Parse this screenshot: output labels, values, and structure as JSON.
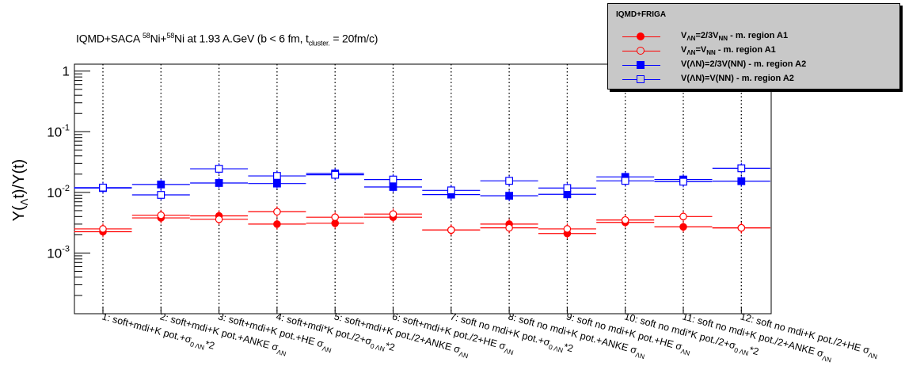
{
  "title_parts": {
    "prefix": "IQMD+SACA ",
    "iso1_mass": "58",
    "iso1_sym": "Ni+",
    "iso2_mass": "58",
    "iso2_sym": "Ni at 1.93 A.GeV (b < 6 fm, t",
    "t_sub": "cluster.",
    "suffix": " = 20fm/c)"
  },
  "legend": {
    "header": "IQMD+FRIGA",
    "entries": [
      {
        "name": "V_ΛN=2/3V_NN - m. region A1",
        "main": "V",
        "sub": "ΛN",
        "mid": "=2/3V",
        "sub2": "NN",
        "rest": "  - m. region A1",
        "color": "#ff0000",
        "marker": "filled-circle"
      },
      {
        "name": "V_ΛN=V_NN - m. region A1",
        "main": "V",
        "sub": "ΛN",
        "mid": "=V",
        "sub2": "NN",
        "rest": "  - m. region A1",
        "color": "#ff0000",
        "marker": "open-circle"
      },
      {
        "name": "V(ΛN)=2/3V(NN) - m. region A2",
        "main": "V(ΛN)=2/3V(NN)  - m. region A2",
        "sub": "",
        "mid": "",
        "sub2": "",
        "rest": "",
        "color": "#0000ff",
        "marker": "filled-square"
      },
      {
        "name": "V(ΛN)=V(NN) - m. region A2",
        "main": "V(ΛN)=V(NN)  - m. region A2",
        "sub": "",
        "mid": "",
        "sub2": "",
        "rest": "",
        "color": "#0000ff",
        "marker": "open-square"
      }
    ]
  },
  "chart_data": {
    "type": "scatter",
    "ylabel": "Y(Λt)/Y(t)",
    "yscale": "log",
    "ylim": [
      0.0001,
      1.3
    ],
    "yticks": [
      {
        "value": 1,
        "base": "1",
        "exp": ""
      },
      {
        "value": 0.1,
        "base": "10",
        "exp": "-1"
      },
      {
        "value": 0.01,
        "base": "10",
        "exp": "-2"
      },
      {
        "value": 0.001,
        "base": "10",
        "exp": "-3"
      }
    ],
    "grid": "vertical dotted lines at each category",
    "legend_position": "top-right",
    "categories": [
      {
        "main": "1: soft+mdi+K pot.+σ",
        "sub": "0 ΛN",
        "tail": "*2"
      },
      {
        "main": "2: soft+mdi+K pot.+ANKE σ",
        "sub": "ΛN",
        "tail": ""
      },
      {
        "main": "3: soft+mdi+K pot.+HE σ",
        "sub": "ΛN",
        "tail": ""
      },
      {
        "main": "4: soft+mdi*K pot./2+σ",
        "sub": "0 ΛN",
        "tail": "*2"
      },
      {
        "main": "5: soft+mdi+K pot./2+ANKE σ",
        "sub": "ΛN",
        "tail": ""
      },
      {
        "main": "6: soft+mdi+K pot./2+HE σ",
        "sub": "ΛN",
        "tail": ""
      },
      {
        "main": "7: soft no mdi+K pot.+σ",
        "sub": "0 ΛN",
        "tail": "*2"
      },
      {
        "main": "8: soft no mdi+K pot.+ANKE σ",
        "sub": "ΛN",
        "tail": ""
      },
      {
        "main": "9: soft no mdi+K pot.+HE σ",
        "sub": "ΛN",
        "tail": ""
      },
      {
        "main": "10: soft no mdi*K pot./2+σ",
        "sub": "0 ΛN",
        "tail": "*2"
      },
      {
        "main": "11: soft no mdi+K pot./2+ANKE σ",
        "sub": "ΛN",
        "tail": ""
      },
      {
        "main": "12: soft no mdi+K pot./2+HE σ",
        "sub": "ΛN",
        "tail": ""
      }
    ],
    "series": [
      {
        "name": "V_ΛN=2/3V_NN - m. region A1",
        "color": "#ff0000",
        "marker": "filled-circle",
        "values": [
          0.00225,
          0.0038,
          0.0041,
          0.003,
          0.0031,
          0.0039,
          0.0024,
          0.003,
          0.0021,
          0.0032,
          0.0027,
          0.0026
        ]
      },
      {
        "name": "V_ΛN=V_NN - m. region A1",
        "color": "#ff0000",
        "marker": "open-circle",
        "values": [
          0.0025,
          0.0042,
          0.0036,
          0.0048,
          0.0039,
          0.0044,
          0.0024,
          0.0026,
          0.0025,
          0.0035,
          0.004,
          0.0026
        ]
      },
      {
        "name": "V(ΛN)=2/3V(NN) - m. region A2",
        "color": "#0000ff",
        "marker": "filled-square",
        "values": [
          0.0118,
          0.0135,
          0.0143,
          0.014,
          0.0205,
          0.0123,
          0.0092,
          0.0088,
          0.0093,
          0.018,
          0.0163,
          0.0153
        ]
      },
      {
        "name": "V(ΛN)=V(NN) - m. region A2",
        "color": "#0000ff",
        "marker": "open-square",
        "values": [
          0.012,
          0.0091,
          0.0245,
          0.0187,
          0.0195,
          0.0163,
          0.0108,
          0.0155,
          0.0118,
          0.0155,
          0.015,
          0.025
        ]
      }
    ]
  }
}
